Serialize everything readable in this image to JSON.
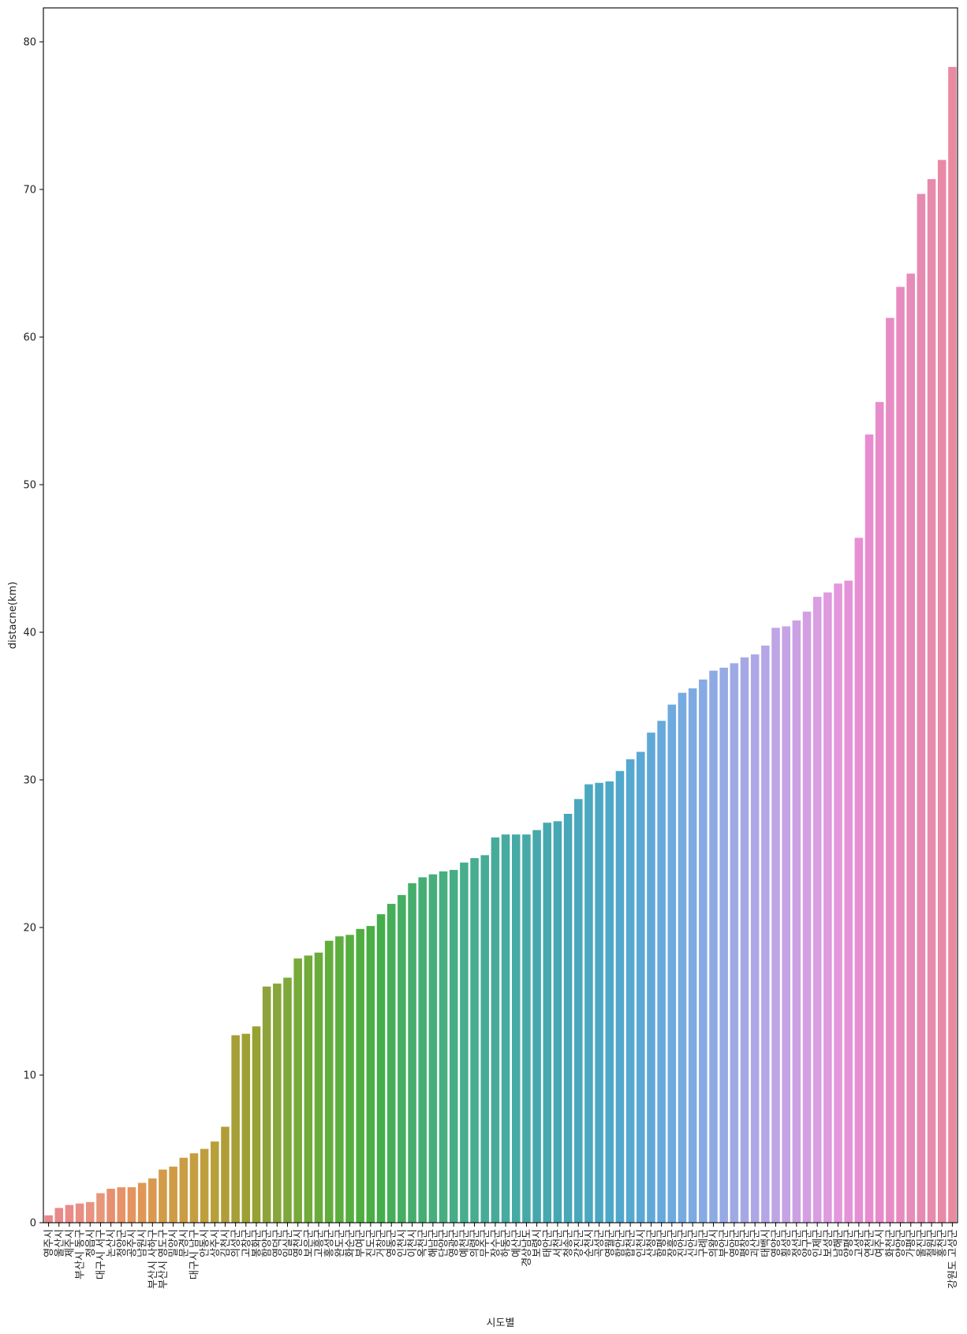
{
  "chart_data": {
    "type": "bar",
    "title": "",
    "xlabel": "시도별",
    "ylabel": "distacne(km)",
    "ylim": [
      0,
      82.3
    ],
    "yticks": [
      0,
      10,
      20,
      30,
      40,
      50,
      60,
      70,
      80
    ],
    "grid": false,
    "legend": "none",
    "values": [
      0.5,
      1.0,
      1.2,
      1.3,
      1.4,
      2.0,
      2.3,
      2.4,
      2.4,
      2.7,
      3.0,
      3.6,
      3.8,
      4.4,
      4.7,
      5.0,
      5.5,
      6.5,
      12.7,
      12.8,
      13.3,
      16.0,
      16.2,
      16.6,
      17.9,
      18.1,
      18.3,
      19.1,
      19.4,
      19.5,
      19.9,
      20.1,
      20.9,
      21.6,
      22.2,
      23.0,
      23.4,
      23.6,
      23.8,
      23.9,
      24.4,
      24.7,
      24.9,
      26.1,
      26.3,
      26.3,
      26.3,
      26.6,
      27.1,
      27.2,
      27.7,
      28.7,
      29.7,
      29.8,
      29.9,
      30.6,
      31.4,
      31.9,
      33.2,
      34.0,
      35.1,
      35.9,
      36.2,
      36.8,
      37.4,
      37.6,
      37.9,
      38.3,
      38.5,
      39.1,
      40.3,
      40.4,
      40.8,
      41.4,
      42.4,
      42.7,
      43.3,
      43.5,
      46.4,
      53.4,
      55.6,
      61.3,
      63.4,
      64.3,
      69.7,
      70.7,
      72.0,
      78.3
    ],
    "colors": [
      "#e8888c",
      "#e8898a",
      "#e98b87",
      "#e98e84",
      "#e99281",
      "#e8967a",
      "#e78f70",
      "#e79267",
      "#e4945e",
      "#e09755",
      "#d99a4f",
      "#d29b47",
      "#cf9c45",
      "#ca9d42",
      "#c49e40",
      "#be9f3d",
      "#b7a03a",
      "#b09d37",
      "#a69e36",
      "#9ea034",
      "#98a232",
      "#8fa33c",
      "#87a63b",
      "#7ea83a",
      "#77aa39",
      "#70ab3b",
      "#6aac3c",
      "#63ad3d",
      "#5eae3e",
      "#56ae3f",
      "#50ae40",
      "#48ae45",
      "#45ae4c",
      "#46ae58",
      "#46ae62",
      "#46ae6c",
      "#46ae74",
      "#46ae7a",
      "#46ae80",
      "#46ae86",
      "#46ae8c",
      "#46ad91",
      "#46ac96",
      "#46ab9b",
      "#46aba0",
      "#46aaa4",
      "#46a9a8",
      "#46a8ac",
      "#47a8b0",
      "#47a8b4",
      "#48a8b8",
      "#49a8bc",
      "#4aa8c0",
      "#4ba8c4",
      "#4ca8c8",
      "#50a8cc",
      "#55a8d0",
      "#5aa8d4",
      "#60a8d8",
      "#67a9dc",
      "#6eaadf",
      "#76aae1",
      "#7eaae2",
      "#86aae3",
      "#8eaae4",
      "#96aae5",
      "#9ea9e6",
      "#a6a8e6",
      "#aea7e6",
      "#b6a6e6",
      "#bea5e6",
      "#c5a3e5",
      "#cca1e4",
      "#d39fe3",
      "#d99de2",
      "#df9bdf",
      "#e397dc",
      "#e593d8",
      "#e68fd4",
      "#e78cd0",
      "#e78bca",
      "#e78bc4",
      "#e78bbe",
      "#e78bb8",
      "#e78ab2",
      "#e78aac",
      "#e88aa6",
      "#e88aa0"
    ],
    "categories": [
      "영주시",
      "울산시",
      "제주시",
      "부산시 동구",
      "정읍시",
      "대구시 서구",
      "논산시",
      "청양군",
      "공주시",
      "남원시",
      "부산시 사하구",
      "부산시 영도구",
      "밀양시",
      "문경시",
      "대구시 남구",
      "안동시",
      "상주시",
      "김천시",
      "의성군",
      "고창군",
      "봉화군",
      "함양군",
      "영덕군",
      "임실군",
      "영천시",
      "보은군",
      "고흥군",
      "홍성군",
      "완도군",
      "화순군",
      "부여군",
      "진도군",
      "거창군",
      "영동군",
      "인천시",
      "이천시",
      "옥천군",
      "해남군",
      "단양군",
      "영광군",
      "예천군",
      "의령군",
      "무주군",
      "장수군",
      "하동군",
      "예산군",
      "경상남도",
      "보령시",
      "태안군",
      "서천군",
      "청송군",
      "강진군",
      "순천시",
      "곡성군",
      "영월군",
      "함안군",
      "합천군",
      "인천시",
      "산청군",
      "함평군",
      "장흥군",
      "진안군",
      "신안군",
      "구례군",
      "의왕시",
      "부안군",
      "영암군",
      "평창군",
      "괴산군",
      "태백시",
      "영양군",
      "횡성군",
      "정선군",
      "양구군",
      "인제군",
      "보성군",
      "남해군",
      "양평군",
      "고성군",
      "연천군",
      "여주시",
      "화천군",
      "양양군",
      "가평군",
      "울진군",
      "철원군",
      "홍천군",
      "강원도 고성군"
    ],
    "tick_labels": [
      "영주시",
      "울산시",
      "제주시",
      "부산시 동구",
      "정읍시",
      "대구시 서구",
      "논산시",
      "청양군",
      "공주시",
      "남원시",
      "부산시 사하구",
      "부산시 영도구",
      "밀양시",
      "문경시",
      "대구시 남구",
      "안동시",
      "상주시",
      "김천시",
      "의성군",
      "고창군",
      "봉화군",
      "함양군",
      "영덕군",
      "임실군",
      "영천시",
      "보은군",
      "고흥군",
      "홍성군",
      "완도군",
      "화순군",
      "부여군",
      "진도군",
      "거창군",
      "영동군",
      "인천시",
      "이천시",
      "옥천군",
      "해남군",
      "단양군",
      "영광군",
      "예천군",
      "의령군",
      "무주군",
      "장수군",
      "하동군",
      "예산군",
      "경상남도",
      "보령시",
      "태안군",
      "서천군",
      "청송군",
      "강진군",
      "순천시",
      "곡성군",
      "영월군",
      "함안군",
      "합천군",
      "인천시",
      "산청군",
      "함평군",
      "장흥군",
      "진안군",
      "신안군",
      "구례군",
      "의왕시",
      "부안군",
      "영암군",
      "평창군",
      "괴산군",
      "태백시",
      "영양군",
      "횡성군",
      "정선군",
      "양구군",
      "인제군",
      "보성군",
      "남해군",
      "양평군",
      "고성군",
      "연천군",
      "여주시",
      "화천군",
      "양양군",
      "가평군",
      "울진군",
      "철원군",
      "홍천군",
      "강원도 고성군"
    ]
  }
}
